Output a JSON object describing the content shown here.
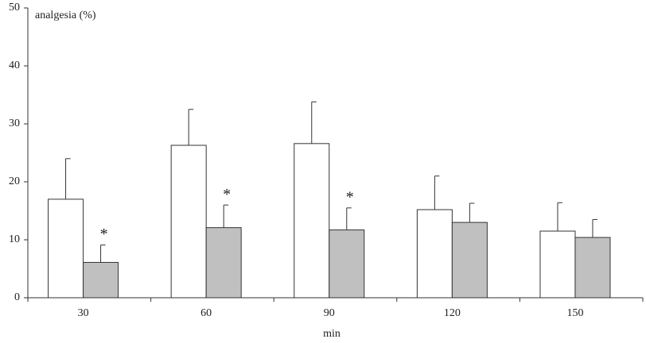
{
  "chart_data": {
    "type": "bar",
    "y_label": "analgesia (%)",
    "x_label": "min",
    "categories": [
      "30",
      "60",
      "90",
      "120",
      "150"
    ],
    "series": [
      {
        "color": "#ffffff",
        "values": [
          17,
          26.3,
          26.6,
          15.2,
          11.5
        ],
        "errors": [
          7,
          6.2,
          7.2,
          5.8,
          4.9
        ]
      },
      {
        "color": "#c0c0c0",
        "values": [
          6.1,
          12.1,
          11.7,
          13,
          10.4
        ],
        "errors": [
          3,
          3.9,
          3.8,
          3.3,
          3.1
        ],
        "significance": [
          "*",
          "*",
          "*",
          null,
          null
        ]
      }
    ],
    "ylim": [
      0,
      50
    ],
    "yticks": [
      0,
      10,
      20,
      30,
      40,
      50
    ]
  }
}
